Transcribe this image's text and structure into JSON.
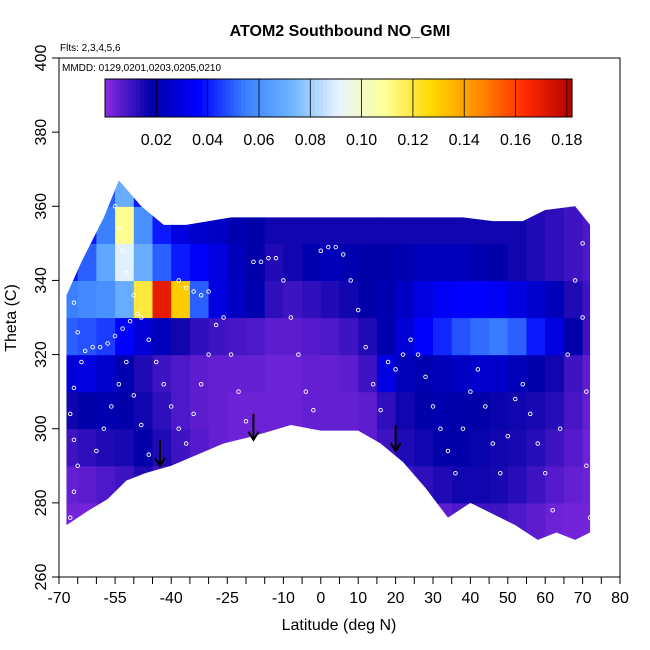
{
  "chart_data": {
    "type": "heatmap",
    "title": "ATOM2 Southbound NO_GMI",
    "annotations": {
      "flights": "Flts: 2,3,4,5,6",
      "dates": "MMDD: 0129,0201,0203,0205,0210"
    },
    "xlabel": "Latitude (deg N)",
    "ylabel": "Theta (C)",
    "xlim": [
      -70,
      80
    ],
    "ylim": [
      260,
      400
    ],
    "x_ticks_major": [
      -70,
      -55,
      -40,
      -25,
      -10,
      0,
      10,
      20,
      30,
      40,
      50,
      60,
      70,
      80
    ],
    "x_ticks_minor": [
      -65,
      -60,
      -50,
      -45,
      -35,
      -30,
      -20,
      -15,
      -5,
      5,
      15,
      25,
      35,
      45,
      55,
      65,
      75
    ],
    "y_ticks": [
      260,
      280,
      300,
      320,
      340,
      360,
      380,
      400
    ],
    "colorbar": {
      "range": [
        0.0,
        0.182
      ],
      "ticks": [
        0.02,
        0.04,
        0.06,
        0.08,
        0.1,
        0.12,
        0.14,
        0.16,
        0.18
      ],
      "tick_labels": [
        "0.02",
        "0.04",
        "0.06",
        "0.08",
        "0.10",
        "0.12",
        "0.14",
        "0.16",
        "0.18"
      ],
      "colors": [
        "#8a2be2",
        "#0000a8",
        "#0000ff",
        "#3a7fff",
        "#6fb4ff",
        "#e8f4ff",
        "#ffff99",
        "#ffd700",
        "#ff8c00",
        "#ff2a00",
        "#b40000"
      ]
    },
    "field": {
      "x": [
        -67.5,
        -62.5,
        -57.5,
        -52.5,
        -47.5,
        -42.5,
        -37.5,
        -32.5,
        -27.5,
        -22.5,
        -17.5,
        -12.5,
        -7.5,
        -2.5,
        2.5,
        7.5,
        12.5,
        17.5,
        22.5,
        27.5,
        32.5,
        37.5,
        42.5,
        47.5,
        52.5,
        57.5,
        62.5,
        67.5,
        72.5
      ],
      "y": [
        275,
        285,
        295,
        305,
        315,
        325,
        335,
        345,
        355,
        365
      ],
      "values": [
        [
          0.003,
          0.003,
          0.004,
          0.003,
          0.003,
          0.004,
          0.003,
          0.003,
          0.003,
          0.003,
          0.003,
          0.003,
          0.004,
          0.004,
          0.003,
          0.003,
          0.003,
          0.003,
          0.004,
          0.005,
          0.006,
          0.008,
          0.01,
          0.01,
          0.008,
          0.006,
          0.004,
          0.003,
          0.003
        ],
        [
          0.005,
          0.006,
          0.008,
          0.01,
          0.014,
          0.01,
          0.007,
          0.005,
          0.004,
          0.004,
          0.004,
          0.004,
          0.005,
          0.006,
          0.006,
          0.005,
          0.006,
          0.008,
          0.01,
          0.012,
          0.014,
          0.016,
          0.016,
          0.015,
          0.013,
          0.01,
          0.007,
          0.005,
          0.004
        ],
        [
          0.01,
          0.012,
          0.014,
          0.015,
          0.018,
          0.014,
          0.01,
          0.007,
          0.005,
          0.004,
          0.004,
          0.004,
          0.005,
          0.005,
          0.005,
          0.005,
          0.006,
          0.01,
          0.014,
          0.016,
          0.018,
          0.018,
          0.017,
          0.016,
          0.015,
          0.013,
          0.01,
          0.007,
          0.004
        ],
        [
          0.016,
          0.018,
          0.02,
          0.018,
          0.016,
          0.012,
          0.008,
          0.006,
          0.005,
          0.004,
          0.004,
          0.004,
          0.004,
          0.005,
          0.005,
          0.005,
          0.006,
          0.012,
          0.016,
          0.018,
          0.02,
          0.019,
          0.018,
          0.017,
          0.016,
          0.015,
          0.013,
          0.009,
          0.005
        ],
        [
          0.028,
          0.03,
          0.026,
          0.02,
          0.014,
          0.01,
          0.008,
          0.006,
          0.005,
          0.005,
          0.005,
          0.004,
          0.004,
          0.005,
          0.005,
          0.006,
          0.01,
          0.03,
          0.022,
          0.02,
          0.022,
          0.024,
          0.026,
          0.025,
          0.022,
          0.019,
          0.016,
          0.01,
          0.006
        ],
        [
          0.05,
          0.048,
          0.045,
          0.036,
          0.028,
          0.022,
          0.016,
          0.012,
          0.01,
          0.009,
          0.008,
          0.006,
          0.006,
          0.007,
          0.008,
          0.01,
          0.014,
          0.02,
          0.028,
          0.036,
          0.042,
          0.048,
          0.052,
          0.054,
          0.05,
          0.04,
          0.03,
          0.018,
          0.01
        ],
        [
          0.055,
          0.058,
          0.06,
          0.07,
          0.12,
          0.17,
          0.13,
          0.05,
          0.03,
          0.024,
          0.02,
          0.012,
          0.01,
          0.012,
          0.014,
          0.016,
          0.018,
          0.02,
          0.024,
          0.03,
          0.034,
          0.036,
          0.036,
          0.034,
          0.03,
          0.026,
          0.022,
          0.014,
          0.01
        ],
        [
          0.04,
          0.05,
          0.068,
          0.09,
          0.07,
          0.05,
          0.04,
          0.035,
          0.03,
          0.022,
          0.018,
          0.014,
          0.016,
          0.02,
          0.022,
          0.02,
          0.018,
          0.018,
          0.02,
          0.022,
          0.022,
          0.022,
          0.02,
          0.018,
          0.016,
          0.014,
          0.012,
          0.01,
          0.008
        ],
        [
          0.03,
          0.04,
          0.055,
          0.11,
          0.06,
          0.04,
          0.03,
          0.026,
          0.024,
          0.02,
          0.018,
          0.016,
          0.016,
          0.016,
          0.016,
          0.016,
          0.016,
          0.016,
          0.016,
          0.016,
          0.016,
          0.016,
          0.016,
          0.016,
          0.016,
          0.014,
          0.012,
          0.01,
          0.008
        ],
        [
          0.02,
          0.03,
          0.05,
          0.07,
          0.04,
          0.03,
          0.024,
          0.02,
          0.018,
          0.016,
          0.016,
          0.016,
          0.016,
          0.016,
          0.016,
          0.016,
          0.016,
          0.016,
          0.016,
          0.016,
          0.016,
          0.016,
          0.016,
          0.016,
          0.016,
          0.014,
          0.012,
          0.01,
          0.008
        ]
      ]
    },
    "coverage": {
      "lower_boundary": [
        [
          -68,
          274
        ],
        [
          -62,
          278
        ],
        [
          -57,
          281
        ],
        [
          -52,
          286
        ],
        [
          -47,
          288
        ],
        [
          -40,
          290
        ],
        [
          -33,
          293
        ],
        [
          -26,
          296
        ],
        [
          -18,
          298
        ],
        [
          -8,
          301
        ],
        [
          0,
          299.5
        ],
        [
          10,
          299.5
        ],
        [
          16,
          296
        ],
        [
          22,
          291
        ],
        [
          28,
          284
        ],
        [
          34,
          276
        ],
        [
          40,
          280
        ],
        [
          46,
          277
        ],
        [
          52,
          274
        ],
        [
          58,
          270
        ],
        [
          63,
          272
        ],
        [
          68,
          270
        ],
        [
          72,
          272
        ]
      ],
      "upper_boundary": [
        [
          -68,
          336
        ],
        [
          -64,
          345
        ],
        [
          -58,
          357
        ],
        [
          -54,
          367
        ],
        [
          -48,
          360
        ],
        [
          -42,
          355
        ],
        [
          -36,
          355
        ],
        [
          -30,
          356
        ],
        [
          -24,
          357
        ],
        [
          -18,
          357
        ],
        [
          -10,
          357
        ],
        [
          0,
          357
        ],
        [
          10,
          357
        ],
        [
          20,
          357
        ],
        [
          30,
          357
        ],
        [
          38,
          357
        ],
        [
          46,
          356
        ],
        [
          54,
          356
        ],
        [
          60,
          359
        ],
        [
          68,
          360
        ],
        [
          72,
          355
        ]
      ]
    },
    "arrows": [
      {
        "lat": -43,
        "theta_from": 297,
        "theta_to": 290
      },
      {
        "lat": -18,
        "theta_from": 304,
        "theta_to": 297
      },
      {
        "lat": 20,
        "theta_from": 301,
        "theta_to": 294
      }
    ],
    "observations": {
      "marker": "open-circle",
      "color": "#ffffff",
      "points": [
        [
          -67,
          276
        ],
        [
          -66,
          283
        ],
        [
          -65,
          290
        ],
        [
          -66,
          297
        ],
        [
          -67,
          304
        ],
        [
          -66,
          311
        ],
        [
          -64,
          318
        ],
        [
          -65,
          326
        ],
        [
          -66,
          334
        ],
        [
          -63,
          321
        ],
        [
          -61,
          322
        ],
        [
          -59,
          322
        ],
        [
          -57,
          323
        ],
        [
          -55,
          325
        ],
        [
          -53,
          327
        ],
        [
          -51,
          329
        ],
        [
          -49,
          331
        ],
        [
          -60,
          294
        ],
        [
          -58,
          300
        ],
        [
          -56,
          306
        ],
        [
          -54,
          312
        ],
        [
          -52,
          318
        ],
        [
          -50,
          309
        ],
        [
          -48,
          301
        ],
        [
          -46,
          293
        ],
        [
          -55,
          360
        ],
        [
          -54,
          354
        ],
        [
          -53,
          348
        ],
        [
          -52,
          342
        ],
        [
          -50,
          336
        ],
        [
          -48,
          330
        ],
        [
          -46,
          324
        ],
        [
          -44,
          318
        ],
        [
          -42,
          312
        ],
        [
          -40,
          306
        ],
        [
          -38,
          300
        ],
        [
          -36,
          296
        ],
        [
          -34,
          304
        ],
        [
          -32,
          312
        ],
        [
          -30,
          320
        ],
        [
          -28,
          328
        ],
        [
          -38,
          340
        ],
        [
          -36,
          338
        ],
        [
          -34,
          337
        ],
        [
          -32,
          336
        ],
        [
          -30,
          337
        ],
        [
          -26,
          330
        ],
        [
          -24,
          320
        ],
        [
          -22,
          310
        ],
        [
          -20,
          302
        ],
        [
          -18,
          345
        ],
        [
          -16,
          345
        ],
        [
          -14,
          346
        ],
        [
          -12,
          346
        ],
        [
          -10,
          340
        ],
        [
          -8,
          330
        ],
        [
          -6,
          320
        ],
        [
          -4,
          310
        ],
        [
          -2,
          305
        ],
        [
          0,
          348
        ],
        [
          2,
          349
        ],
        [
          4,
          349
        ],
        [
          6,
          347
        ],
        [
          8,
          340
        ],
        [
          10,
          332
        ],
        [
          12,
          322
        ],
        [
          14,
          312
        ],
        [
          16,
          305
        ],
        [
          18,
          318
        ],
        [
          20,
          316
        ],
        [
          22,
          320
        ],
        [
          24,
          324
        ],
        [
          26,
          320
        ],
        [
          28,
          314
        ],
        [
          30,
          306
        ],
        [
          32,
          300
        ],
        [
          34,
          294
        ],
        [
          36,
          288
        ],
        [
          38,
          300
        ],
        [
          40,
          310
        ],
        [
          42,
          316
        ],
        [
          44,
          306
        ],
        [
          46,
          296
        ],
        [
          48,
          288
        ],
        [
          50,
          298
        ],
        [
          52,
          308
        ],
        [
          54,
          312
        ],
        [
          56,
          304
        ],
        [
          58,
          296
        ],
        [
          60,
          288
        ],
        [
          62,
          278
        ],
        [
          64,
          300
        ],
        [
          66,
          320
        ],
        [
          68,
          340
        ],
        [
          70,
          350
        ],
        [
          70,
          330
        ],
        [
          71,
          310
        ],
        [
          71,
          290
        ],
        [
          72,
          276
        ]
      ]
    }
  }
}
